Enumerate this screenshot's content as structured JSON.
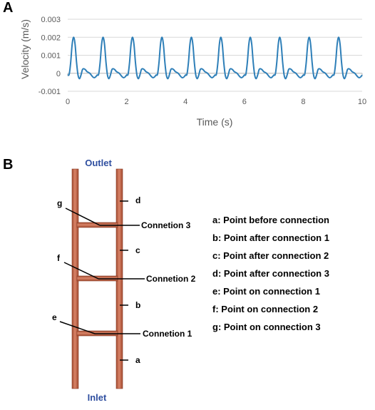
{
  "panels": {
    "a_label": "A",
    "b_label": "B"
  },
  "chart_data": {
    "type": "line",
    "xlabel": "Time (s)",
    "ylabel": "Velocity (m/s)",
    "xlim": [
      0,
      10
    ],
    "ylim": [
      -0.001,
      0.003
    ],
    "x_ticks": [
      "0",
      "2",
      "4",
      "6",
      "8",
      "10"
    ],
    "y_ticks": [
      "-0.001",
      "0",
      "0.001",
      "0.002",
      "0.003"
    ],
    "grid": "horizontal",
    "color": "#2e7fb8",
    "series": [
      {
        "period": 1.0,
        "x": [
          0,
          0.05,
          0.1,
          0.15,
          0.2,
          0.25,
          0.3,
          0.35,
          0.4,
          0.45,
          0.5,
          0.55,
          0.6,
          0.65,
          0.7,
          0.75,
          0.8,
          0.85,
          0.9,
          0.95,
          1.0
        ],
        "y": [
          -0.0001,
          -5e-05,
          0.0006,
          0.0016,
          0.002,
          0.0016,
          0.0006,
          -0.0001,
          -0.0003,
          -0.0001,
          0.0002,
          0.00025,
          0.0002,
          0.0001,
          5e-05,
          0.0,
          -0.0001,
          -0.0002,
          -0.00025,
          -0.0002,
          -0.0001
        ]
      }
    ]
  },
  "diagram": {
    "outlet": "Outlet",
    "inlet": "Inlet",
    "points": [
      "a",
      "b",
      "c",
      "d",
      "e",
      "f",
      "g"
    ],
    "connections": [
      "Connetion 1",
      "Connetion 2",
      "Connetion 3"
    ],
    "legend": [
      "a: Point before connection",
      "b: Point after connection 1",
      "c: Point after connection 2",
      "d: Point after connection 3",
      "e: Point on connection 1",
      "f: Point on connection 2",
      "g: Point on connection 3"
    ],
    "pipe_color": "#c8694a",
    "label_color": "#2f4fa0"
  }
}
